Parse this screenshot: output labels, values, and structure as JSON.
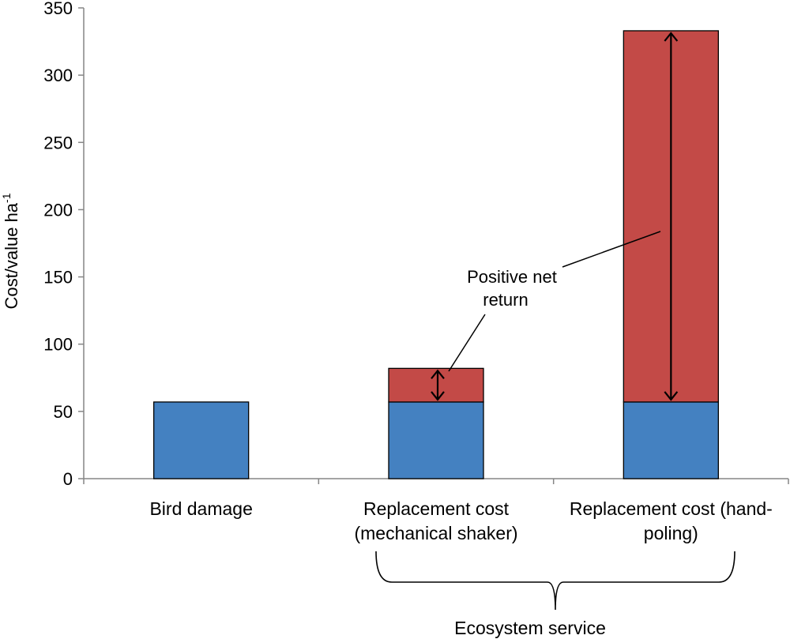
{
  "chart_data": {
    "type": "bar",
    "stacked": true,
    "categories": [
      [
        "Bird damage"
      ],
      [
        "Replacement cost",
        "(mechanical shaker)"
      ],
      [
        "Replacement cost (hand-",
        "poling)"
      ]
    ],
    "series": [
      {
        "values": [
          57,
          57,
          57
        ],
        "color": "#4481c1"
      },
      {
        "values": [
          0,
          25,
          276
        ],
        "color": "#c34a47"
      }
    ],
    "ylabel": "Cost/value ha",
    "ylabel_superscript": "-1",
    "ylim": [
      0,
      350
    ],
    "yticks": [
      "0",
      "50",
      "100",
      "150",
      "200",
      "250",
      "300",
      "350"
    ],
    "grid": false,
    "annotation": {
      "line1": "Positive net",
      "line2": "return"
    },
    "group_label": "Ecosystem service"
  }
}
